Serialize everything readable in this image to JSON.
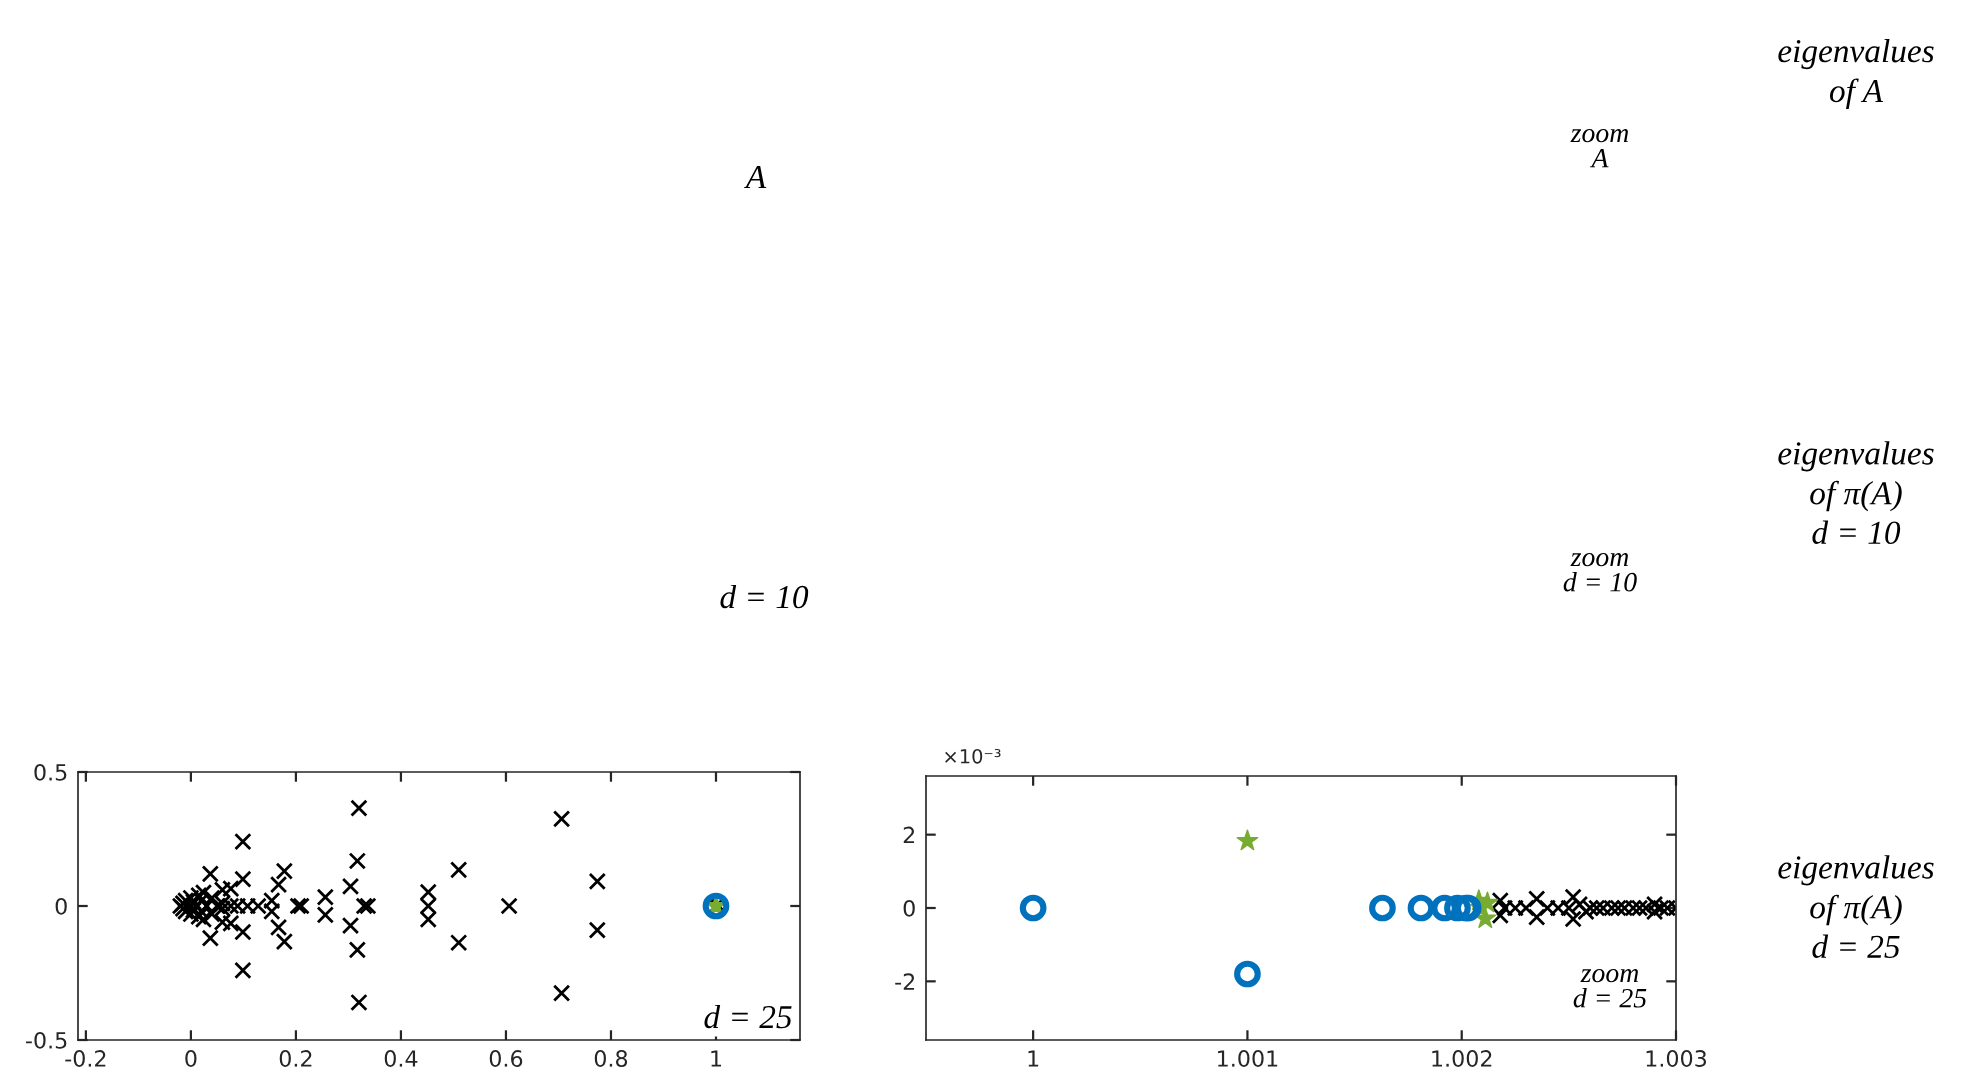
{
  "chart_data": [
    {
      "type": "scatter",
      "xlim": [
        -0.215,
        1.16
      ],
      "ylim": [
        -0.5,
        0.5
      ],
      "xticks": [
        -0.2,
        0,
        0.2,
        0.4,
        0.6,
        0.8,
        1
      ],
      "yticks": [
        -0.5,
        0,
        0.5
      ],
      "grid": false,
      "legend": false,
      "annotations": [
        "A",
        "d = 10",
        "d = 25"
      ],
      "series": [
        {
          "color": "#000000",
          "marker": "cross",
          "x": [
            0.32,
            0.32,
            0.317,
            0.317,
            0.304,
            0.304,
            0.33,
            0.337,
            0.706,
            0.706,
            0.774,
            0.774,
            0.606,
            0.51,
            0.51,
            0.452,
            0.452,
            0.452,
            0.256,
            0.256,
            0.204,
            0.21,
            0.178,
            0.178,
            0.167,
            0.167,
            0.154,
            0.154,
            0.128,
            0.099,
            0.099,
            0.099,
            0.099,
            0.076,
            0.089,
            0.108,
            0.076,
            0.076,
            0.037,
            0.037,
            0.024,
            0.024,
            -0.02,
            -0.015,
            -0.015,
            -0.01,
            -0.01,
            0,
            0,
            0,
            0.005,
            0.005,
            0.01,
            0.015,
            0.015,
            0.02,
            0.02,
            0.03,
            0.04,
            0.04,
            0.05,
            0.06,
            0.06,
            0.06,
            0.06,
            1,
            1.005
          ],
          "values": [
            0.365,
            -0.36,
            0.168,
            -0.164,
            0.073,
            -0.073,
            0,
            0,
            0.325,
            -0.325,
            0.092,
            -0.09,
            0,
            0.135,
            -0.137,
            0.052,
            0,
            -0.05,
            0.033,
            -0.033,
            0,
            0,
            0.13,
            -0.133,
            0.08,
            -0.08,
            0.02,
            -0.02,
            0,
            0.24,
            -0.24,
            0.1,
            -0.097,
            0,
            0,
            0,
            0.065,
            -0.065,
            0.12,
            -0.12,
            0.05,
            -0.05,
            0,
            0.01,
            -0.01,
            0.02,
            -0.02,
            0,
            0.03,
            -0.03,
            0.015,
            -0.015,
            0,
            0.04,
            -0.04,
            0.02,
            -0.02,
            0,
            0.03,
            -0.03,
            0,
            0.01,
            -0.01,
            0.06,
            -0.06,
            0,
            0
          ]
        },
        {
          "color": "#0072bd",
          "marker": "circle",
          "x": [
            1
          ],
          "values": [
            0
          ]
        },
        {
          "color": "#77ac30",
          "marker": "star",
          "x": [
            1
          ],
          "values": [
            0
          ]
        }
      ]
    },
    {
      "type": "scatter",
      "xlim": [
        0.9995,
        1.003
      ],
      "ylim": [
        -3.6,
        3.6
      ],
      "xticks": [
        1,
        1.001,
        1.002,
        1.003
      ],
      "yticks": [
        -2,
        0,
        2
      ],
      "grid": false,
      "legend": false,
      "annotations": [
        "×10⁻³",
        "zoom\nA",
        "zoom\nd = 10",
        "zoom\nd = 25",
        "eigenvalues\nof A",
        "eigenvalues\nof π(A)\nd = 10",
        "eigenvalues\nof π(A)\nd = 25"
      ],
      "series": [
        {
          "color": "#000000",
          "marker": "cross",
          "x": [
            1.00218,
            1.00218,
            1.0022,
            1.00225,
            1.0023,
            1.00235,
            1.00235,
            1.0024,
            1.00245,
            1.0025,
            1.00252,
            1.00252,
            1.00255,
            1.00258,
            1.0026,
            1.00263,
            1.00266,
            1.0027,
            1.00273,
            1.00276,
            1.0028,
            1.00283,
            1.00286,
            1.0029,
            1.0029,
            1.00293,
            1.00296,
            1.003
          ],
          "values": [
            0.2,
            -0.2,
            0,
            0,
            0,
            0.25,
            -0.25,
            0,
            0,
            0,
            0.3,
            -0.3,
            0.1,
            -0.1,
            0,
            0,
            0,
            0,
            0,
            0,
            0,
            0,
            0,
            0.1,
            -0.1,
            0,
            0,
            0
          ]
        },
        {
          "color": "#0072bd",
          "marker": "circle",
          "x": [
            1.0,
            1.001,
            1.00163,
            1.00181,
            1.00192,
            1.00198,
            1.00202,
            1.00203
          ],
          "values": [
            0,
            -1.8,
            0,
            0,
            0,
            0,
            0,
            0
          ]
        },
        {
          "color": "#77ac30",
          "marker": "star",
          "x": [
            1.001,
            1.00208,
            1.00209,
            1.00211,
            1.00212
          ],
          "values": [
            1.83,
            0.2,
            0,
            -0.29,
            0.14
          ]
        }
      ]
    }
  ]
}
